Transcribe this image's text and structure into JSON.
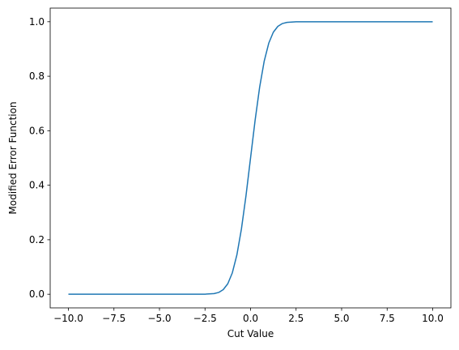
{
  "chart_data": {
    "type": "line",
    "title": "",
    "xlabel": "Cut Value",
    "ylabel": "Modified Error Function",
    "xlim": [
      -11.0,
      11.0
    ],
    "ylim": [
      -0.05,
      1.05
    ],
    "xticks": [
      -10.0,
      -7.5,
      -5.0,
      -2.5,
      0.0,
      2.5,
      5.0,
      7.5,
      10.0
    ],
    "xtick_labels": [
      "−10.0",
      "−7.5",
      "−5.0",
      "−2.5",
      "0.0",
      "2.5",
      "5.0",
      "7.5",
      "10.0"
    ],
    "yticks": [
      0.0,
      0.2,
      0.4,
      0.6,
      0.8,
      1.0
    ],
    "ytick_labels": [
      "0.0",
      "0.2",
      "0.4",
      "0.6",
      "0.8",
      "1.0"
    ],
    "grid": false,
    "legend": "none",
    "series": [
      {
        "color": "#1f77b4",
        "x": [
          -10,
          -4,
          -3,
          -2.5,
          -2,
          -1.75,
          -1.5,
          -1.25,
          -1,
          -0.75,
          -0.5,
          -0.25,
          0,
          0.25,
          0.5,
          0.75,
          1,
          1.25,
          1.5,
          1.75,
          2,
          2.5,
          3,
          4,
          10
        ],
        "y": [
          0,
          0,
          0.0001,
          0.0003,
          0.0023,
          0.0066,
          0.0169,
          0.0385,
          0.0786,
          0.1444,
          0.2398,
          0.3618,
          0.5,
          0.6382,
          0.7602,
          0.8556,
          0.9214,
          0.9615,
          0.9831,
          0.9934,
          0.9977,
          0.9997,
          0.9999,
          1,
          1
        ]
      }
    ]
  }
}
